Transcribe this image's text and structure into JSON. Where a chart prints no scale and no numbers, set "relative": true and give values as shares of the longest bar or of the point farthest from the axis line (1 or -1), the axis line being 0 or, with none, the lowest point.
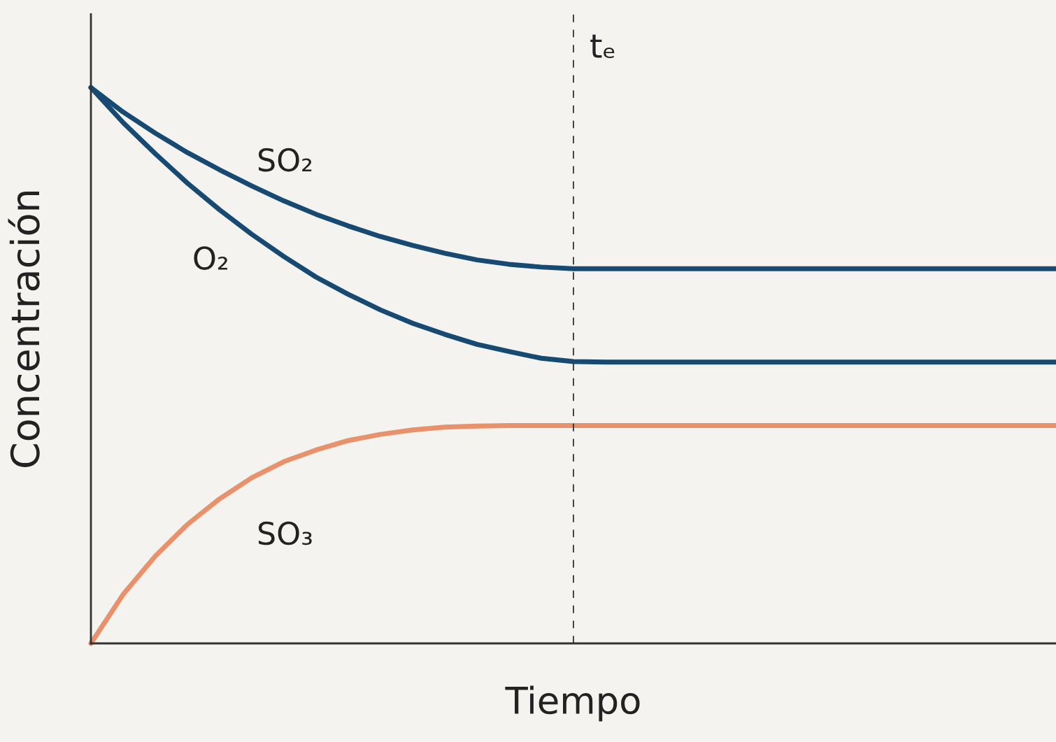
{
  "chart_data": {
    "type": "line",
    "relative": true,
    "xlabel": "Tiempo",
    "ylabel": "Concentración",
    "categories": [
      null,
      null,
      null,
      null,
      null,
      null,
      null,
      null,
      null,
      null,
      null,
      null,
      null,
      null,
      null,
      null,
      null,
      null,
      null,
      null,
      null,
      null,
      null,
      null,
      null,
      null,
      null,
      null,
      null,
      null,
      null
    ],
    "series": [
      {
        "name": "SO₂",
        "color": "#174a72",
        "values": [
          1,
          0.956,
          0.918,
          0.883,
          0.852,
          0.823,
          0.796,
          0.772,
          0.751,
          0.732,
          0.716,
          0.702,
          0.69,
          0.682,
          0.677,
          0.674,
          0.674,
          0.674,
          0.674,
          0.674,
          0.674,
          0.674,
          0.674,
          0.674,
          0.674,
          0.674,
          0.674,
          0.674,
          0.674,
          0.674,
          0.674
        ]
      },
      {
        "name": "O₂",
        "color": "#174a72",
        "values": [
          1,
          0.937,
          0.881,
          0.828,
          0.78,
          0.736,
          0.696,
          0.659,
          0.628,
          0.6,
          0.576,
          0.556,
          0.538,
          0.525,
          0.513,
          0.507,
          0.506,
          0.506,
          0.506,
          0.506,
          0.506,
          0.506,
          0.506,
          0.506,
          0.506,
          0.506,
          0.506,
          0.506,
          0.506,
          0.506,
          0.506
        ]
      },
      {
        "name": "SO₃",
        "color": "#e8916a",
        "values": [
          0,
          0.088,
          0.157,
          0.214,
          0.26,
          0.298,
          0.327,
          0.348,
          0.365,
          0.376,
          0.384,
          0.389,
          0.391,
          0.392,
          0.392,
          0.392,
          0.392,
          0.392,
          0.392,
          0.392,
          0.392,
          0.392,
          0.392,
          0.392,
          0.392,
          0.392,
          0.392,
          0.392,
          0.392,
          0.392,
          0.392
        ]
      }
    ],
    "annotations": [
      "tₑ"
    ],
    "line_style": "solid"
  }
}
